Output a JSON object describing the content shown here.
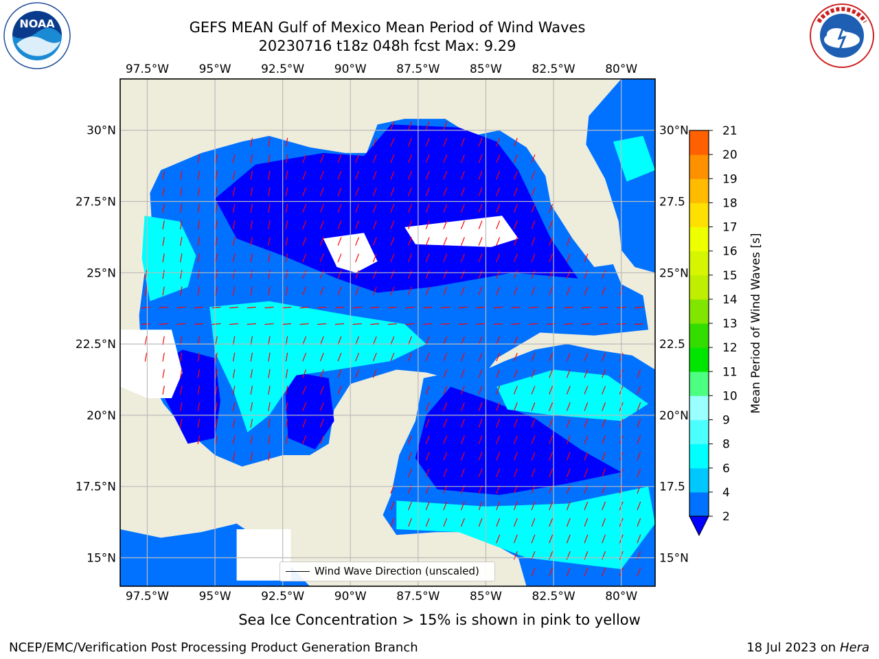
{
  "header": {
    "title_line1": "GEFS MEAN Gulf of Mexico Mean Period of Wind Waves",
    "title_line2": "20230716 t18z 048h fcst   Max: 9.29"
  },
  "logos": {
    "noaa": {
      "text": "NOAA",
      "ring_text": "NATIONAL OCEANIC AND ATMOSPHERIC ADMINISTRATION · U.S. DEPARTMENT OF COMMERCE"
    },
    "nws": {
      "ring_text": "NATIONAL WEATHER SERVICE"
    }
  },
  "map": {
    "lon_ticks": [
      "97.5°W",
      "95°W",
      "92.5°W",
      "90°W",
      "87.5°W",
      "85°W",
      "82.5°W",
      "80°W"
    ],
    "lat_ticks_left": [
      "30°N",
      "27.5°N",
      "25°N",
      "22.5°N",
      "20°N",
      "17.5°N",
      "15°N"
    ],
    "lat_ticks_right": [
      "30°N",
      "27.5",
      "25°N",
      "22.5",
      "20°N",
      "17.5",
      "15°N"
    ],
    "lon_range": [
      -98.5,
      -78.75
    ],
    "lat_range": [
      14.0,
      31.8
    ],
    "land_color": "#eeecdb",
    "vector_color": "#ff0000",
    "legend_label": "Wind Wave Direction (unscaled)"
  },
  "colorbar": {
    "label": "Mean Period of Wind Waves [s]",
    "ticks": [
      "2",
      "4",
      "6",
      "8",
      "9",
      "10",
      "11",
      "12",
      "13",
      "14",
      "15",
      "16",
      "17",
      "18",
      "19",
      "20",
      "21"
    ],
    "colors": [
      "#0072ff",
      "#00c8ff",
      "#00ffff",
      "#4cffff",
      "#99ffff",
      "#4cff80",
      "#00e600",
      "#33dd00",
      "#80e600",
      "#bfee00",
      "#d6f500",
      "#eeff00",
      "#ffe000",
      "#ffbb00",
      "#ff9000",
      "#ff6000",
      "#ff3000",
      "#ff0000"
    ],
    "extend_min_color": "#0000ff"
  },
  "notes": {
    "ice": "Sea Ice Concentration > 15% is shown in pink to yellow"
  },
  "footer": {
    "left": "NCEP/EMC/Verification Post Processing Product Generation Branch",
    "right_date": "18 Jul 2023 on ",
    "right_machine": "Hera"
  }
}
